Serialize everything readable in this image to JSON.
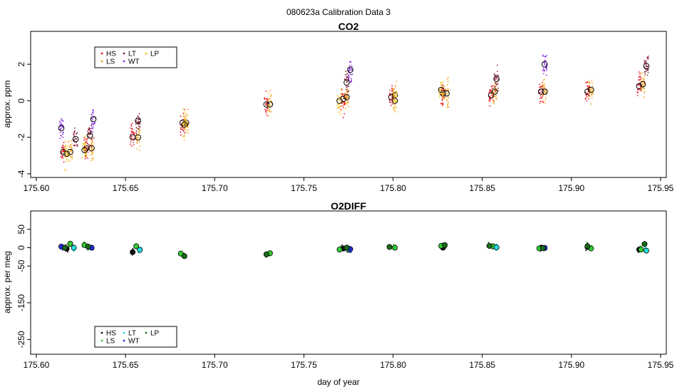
{
  "page": {
    "title": "080623a   Calibration Data 3"
  },
  "x_axis": {
    "label": "day of year"
  },
  "colors": {
    "HS": "#e8121d",
    "LS": "#f5a623",
    "LT": "#8b1f3c",
    "WT": "#8a2be2",
    "LP": "#f7c21a",
    "o2_HS": "#111111",
    "o2_LS": "#33cc33",
    "o2_LT": "#22dddd",
    "o2_WT": "#1f2fd6",
    "o2_LP": "#1a6b1a"
  },
  "chart_data": [
    {
      "type": "scatter",
      "title": "CO2",
      "ylabel": "approx. ppm",
      "xlim": [
        175.6,
        175.95
      ],
      "ylim": [
        -4.2,
        3.8
      ],
      "xticks": [
        "175.60",
        "175.65",
        "175.70",
        "175.75",
        "175.80",
        "175.85",
        "175.90",
        "175.95"
      ],
      "yticks": [
        "-4",
        "-2",
        "0",
        "2"
      ],
      "legend": {
        "placement": "top-left",
        "entries": [
          "HS",
          "LS",
          "LT",
          "WT",
          "LP"
        ]
      },
      "series": [
        {
          "name": "HS",
          "x": [
            175.615,
            175.628,
            175.654,
            175.682,
            175.729,
            175.772,
            175.799,
            175.828,
            175.855,
            175.883,
            175.909,
            175.938
          ],
          "y": [
            -2.8,
            -2.6,
            -2.0,
            -1.2,
            -0.2,
            0.1,
            0.2,
            0.4,
            0.3,
            0.5,
            0.5,
            0.8
          ]
        },
        {
          "name": "LS",
          "x": [
            175.619,
            175.631,
            175.657,
            175.684,
            175.731,
            175.774,
            175.801,
            175.83,
            175.857,
            175.885,
            175.911,
            175.94
          ],
          "y": [
            -2.8,
            -2.6,
            -2.0,
            -1.2,
            -0.2,
            0.2,
            0.3,
            0.4,
            0.5,
            0.5,
            0.6,
            0.9
          ]
        },
        {
          "name": "LT",
          "x": [
            175.622,
            175.63,
            175.657,
            175.774,
            175.858,
            175.942
          ],
          "y": [
            -2.1,
            -1.9,
            -1.1,
            1.0,
            1.2,
            1.9
          ]
        },
        {
          "name": "WT",
          "x": [
            175.614,
            175.632,
            175.776,
            175.885
          ],
          "y": [
            -1.5,
            -1.0,
            1.7,
            2.0
          ]
        },
        {
          "name": "LP",
          "x": [
            175.617,
            175.627,
            175.683,
            175.77,
            175.801,
            175.827
          ],
          "y": [
            -2.9,
            -2.7,
            -1.3,
            0.0,
            0.0,
            0.6
          ]
        }
      ]
    },
    {
      "type": "scatter",
      "title": "O2DIFF",
      "ylabel": "approx. per meg",
      "xlim": [
        175.6,
        175.95
      ],
      "ylim": [
        -290,
        100
      ],
      "xticks": [
        "175.60",
        "175.65",
        "175.70",
        "175.75",
        "175.80",
        "175.85",
        "175.90",
        "175.95"
      ],
      "yticks": [
        "50",
        "0",
        "-50",
        "-150",
        "-250"
      ],
      "legend": {
        "placement": "bottom-left",
        "entries": [
          "HS",
          "LS",
          "LT",
          "WT",
          "LP"
        ]
      },
      "series": [
        {
          "name": "HS",
          "x": [
            175.617,
            175.654,
            175.772,
            175.828,
            175.883,
            175.909,
            175.938
          ],
          "y": [
            -3,
            -12,
            -2,
            0,
            0,
            2,
            -5
          ]
        },
        {
          "name": "LS",
          "x": [
            175.619,
            175.627,
            175.656,
            175.681,
            175.731,
            175.77,
            175.801,
            175.827,
            175.856,
            175.882,
            175.911,
            175.939
          ],
          "y": [
            11,
            7,
            4,
            -16,
            -15,
            -5,
            0,
            5,
            4,
            -2,
            -2,
            -5
          ]
        },
        {
          "name": "LT",
          "x": [
            175.621,
            175.658,
            175.775,
            175.858,
            175.942
          ],
          "y": [
            0,
            -6,
            -6,
            1,
            -8
          ]
        },
        {
          "name": "WT",
          "x": [
            175.614,
            175.631,
            175.776,
            175.885
          ],
          "y": [
            3,
            0,
            -4,
            -1
          ]
        },
        {
          "name": "LP",
          "x": [
            175.616,
            175.629,
            175.683,
            175.729,
            175.774,
            175.798,
            175.829,
            175.854,
            175.884,
            175.909,
            175.941
          ],
          "y": [
            0,
            3,
            -23,
            -18,
            0,
            2,
            7,
            5,
            -1,
            4,
            10
          ]
        }
      ]
    }
  ]
}
